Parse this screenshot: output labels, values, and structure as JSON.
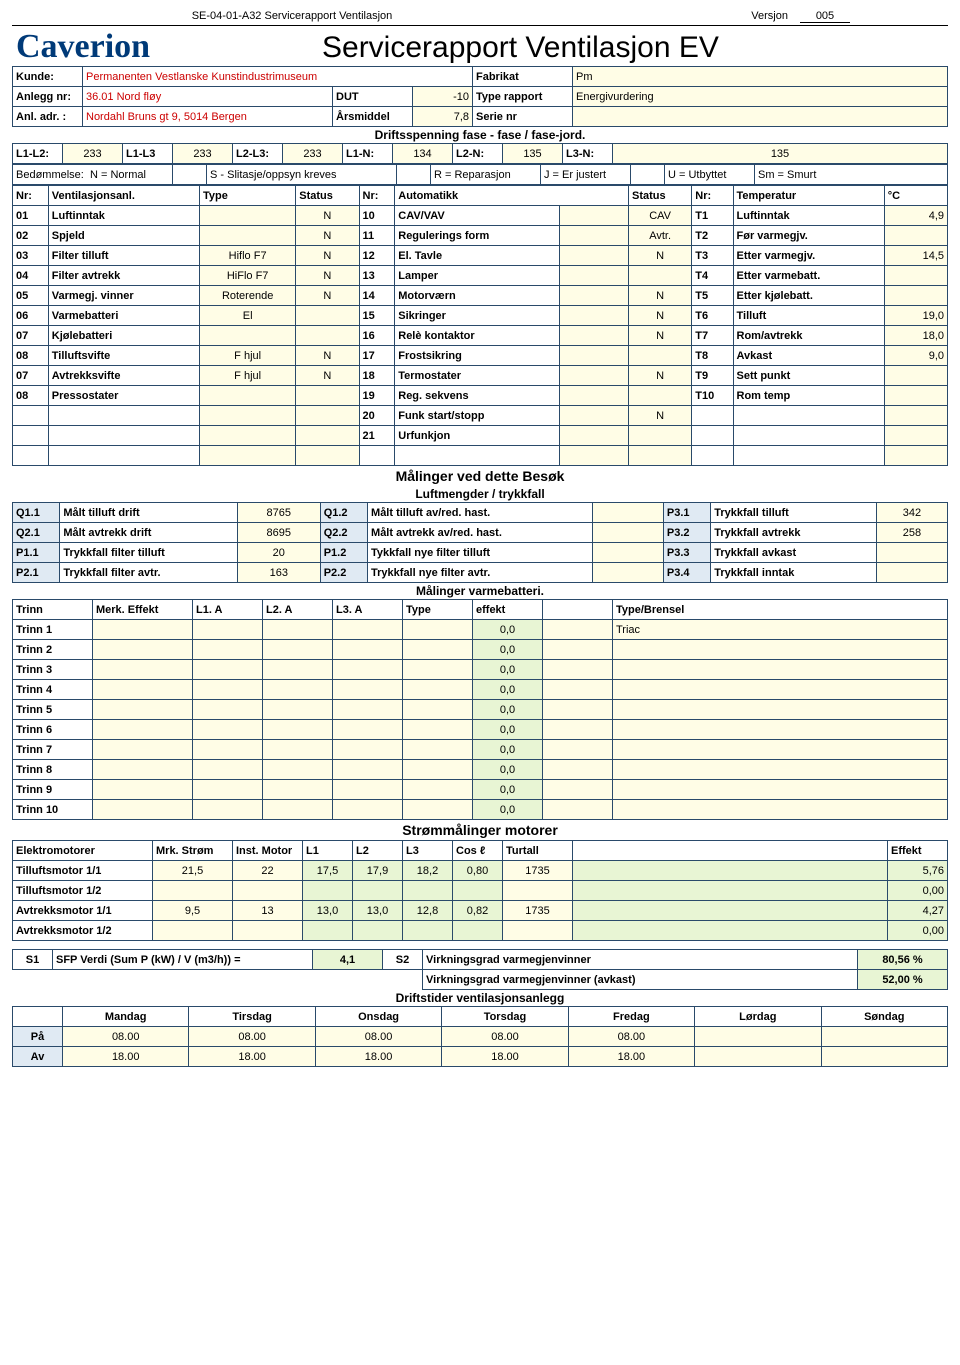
{
  "header": {
    "doc_id": "SE-04-01-A32 Servicerapport Ventilasjon",
    "version_label": "Versjon",
    "version_num": "005"
  },
  "brand": "Caverion",
  "title": "Servicerapport Ventilasjon EV",
  "info": {
    "kunde_label": "Kunde:",
    "kunde": "Permanenten Vestlanske Kunstindustrimuseum",
    "fabrikat_label": "Fabrikat",
    "fabrikat": "Pm",
    "anlegg_label": "Anlegg nr:",
    "anlegg": "36.01 Nord fløy",
    "dut_label": "DUT",
    "dut": "-10",
    "type_rapport_label": "Type rapport",
    "type_rapport": "Energivurdering",
    "adr_label": "Anl. adr. :",
    "adr": "Nordahl Bruns gt 9, 5014 Bergen",
    "arsmiddel_label": "Årsmiddel",
    "arsmiddel": "7,8",
    "serienr_label": "Serie nr",
    "serienr": ""
  },
  "volt_header": "Driftsspenning fase - fase / fase-jord.",
  "volt": {
    "l1l2_label": "L1-L2:",
    "l1l2": "233",
    "l1l3_label": "L1-L3",
    "l1l3": "233",
    "l2l3_label": "L2-L3:",
    "l2l3": "233",
    "l1n_label": "L1-N:",
    "l1n": "134",
    "l2n_label": "L2-N:",
    "l2n": "135",
    "l3n_label": "L3-N:",
    "l3n": "135"
  },
  "bed": {
    "label": "Bedømmelse:",
    "n": "N = Normal",
    "s": "S - Slitasje/oppsyn kreves",
    "r": "R = Reparasjon",
    "j": "J = Er justert",
    "u": "U = Utbyttet",
    "sm": "Sm = Smurt"
  },
  "table_heads": {
    "nr": "Nr:",
    "vent": "Ventilasjonsanl.",
    "type": "Type",
    "status": "Status",
    "auto": "Automatikk",
    "temp": "Temperatur",
    "degc": "°C"
  },
  "vent_left": [
    {
      "nr": "01",
      "name": "Luftinntak",
      "type": "",
      "status": "N"
    },
    {
      "nr": "02",
      "name": "Spjeld",
      "type": "",
      "status": "N"
    },
    {
      "nr": "03",
      "name": "Filter tilluft",
      "type": "Hiflo F7",
      "status": "N"
    },
    {
      "nr": "04",
      "name": "Filter avtrekk",
      "type": "HiFlo F7",
      "status": "N"
    },
    {
      "nr": "05",
      "name": "Varmegj. vinner",
      "type": "Roterende",
      "status": "N"
    },
    {
      "nr": "06",
      "name": "Varmebatteri",
      "type": "El",
      "status": ""
    },
    {
      "nr": "07",
      "name": "Kjølebatteri",
      "type": "",
      "status": ""
    },
    {
      "nr": "08",
      "name": "Tilluftsvifte",
      "type": "F hjul",
      "status": "N"
    },
    {
      "nr": "07",
      "name": "Avtrekksvifte",
      "type": "F hjul",
      "status": "N"
    },
    {
      "nr": "08",
      "name": "Pressostater",
      "type": "",
      "status": ""
    }
  ],
  "vent_mid": [
    {
      "nr": "10",
      "name": "CAV/VAV",
      "x": "",
      "status": "CAV"
    },
    {
      "nr": "11",
      "name": "Regulerings form",
      "x": "",
      "status": "Avtr."
    },
    {
      "nr": "12",
      "name": "El. Tavle",
      "x": "",
      "status": "N"
    },
    {
      "nr": "13",
      "name": "Lamper",
      "x": "",
      "status": ""
    },
    {
      "nr": "14",
      "name": "Motorværn",
      "x": "",
      "status": "N"
    },
    {
      "nr": "15",
      "name": "Sikringer",
      "x": "",
      "status": "N"
    },
    {
      "nr": "16",
      "name": "Relè kontaktor",
      "x": "",
      "status": "N"
    },
    {
      "nr": "17",
      "name": "Frostsikring",
      "x": "",
      "status": ""
    },
    {
      "nr": "18",
      "name": "Termostater",
      "x": "",
      "status": "N"
    },
    {
      "nr": "19",
      "name": "Reg. sekvens",
      "x": "",
      "status": ""
    },
    {
      "nr": "20",
      "name": "Funk start/stopp",
      "x": "",
      "status": "N"
    },
    {
      "nr": "21",
      "name": "Urfunkjon",
      "x": "",
      "status": ""
    }
  ],
  "vent_right": [
    {
      "nr": "T1",
      "name": "Luftinntak",
      "val": "4,9"
    },
    {
      "nr": "T2",
      "name": "Før varmegjv.",
      "val": ""
    },
    {
      "nr": "T3",
      "name": "Etter varmegjv.",
      "val": "14,5"
    },
    {
      "nr": "T4",
      "name": "Etter varmebatt.",
      "val": ""
    },
    {
      "nr": "T5",
      "name": "Etter kjølebatt.",
      "val": ""
    },
    {
      "nr": "T6",
      "name": "Tilluft",
      "val": "19,0"
    },
    {
      "nr": "T7",
      "name": "Rom/avtrekk",
      "val": "18,0"
    },
    {
      "nr": "T8",
      "name": "Avkast",
      "val": "9,0"
    },
    {
      "nr": "T9",
      "name": "Sett punkt",
      "val": ""
    },
    {
      "nr": "T10",
      "name": "Rom temp",
      "val": ""
    }
  ],
  "malinger_title": "Målinger ved dette Besøk",
  "luft_title": "Luftmengder / trykkfall",
  "luft": [
    [
      "Q1.1",
      "Målt tilluft drift",
      "8765",
      "Q1.2",
      "Målt tilluft av/red. hast.",
      "",
      "P3.1",
      "Trykkfall tilluft",
      "342"
    ],
    [
      "Q2.1",
      "Målt avtrekk drift",
      "8695",
      "Q2.2",
      "Målt avtrekk av/red. hast.",
      "",
      "P3.2",
      "Trykkfall avtrekk",
      "258"
    ],
    [
      "P1.1",
      "Trykkfall filter tilluft",
      "20",
      "P1.2",
      "Tykkfall nye filter tilluft",
      "",
      "P3.3",
      "Trykkfall avkast",
      ""
    ],
    [
      "P2.1",
      "Trykkfall filter avtr.",
      "163",
      "P2.2",
      "Trykkfall nye filter avtr.",
      "",
      "P3.4",
      "Trykkfall inntak",
      ""
    ]
  ],
  "varme_title": "Målinger varmebatteri.",
  "varme_head": [
    "Trinn",
    "Merk. Effekt",
    "L1. A",
    "L2. A",
    "L3. A",
    "Type",
    "effekt",
    "",
    "Type/Brensel"
  ],
  "varme_rows": [
    [
      "Trinn 1",
      "",
      "",
      "",
      "",
      "",
      "0,0",
      "",
      "Triac"
    ],
    [
      "Trinn 2",
      "",
      "",
      "",
      "",
      "",
      "0,0",
      "",
      ""
    ],
    [
      "Trinn 3",
      "",
      "",
      "",
      "",
      "",
      "0,0",
      "",
      ""
    ],
    [
      "Trinn 4",
      "",
      "",
      "",
      "",
      "",
      "0,0",
      "",
      ""
    ],
    [
      "Trinn 5",
      "",
      "",
      "",
      "",
      "",
      "0,0",
      "",
      ""
    ],
    [
      "Trinn 6",
      "",
      "",
      "",
      "",
      "",
      "0,0",
      "",
      ""
    ],
    [
      "Trinn 7",
      "",
      "",
      "",
      "",
      "",
      "0,0",
      "",
      ""
    ],
    [
      "Trinn 8",
      "",
      "",
      "",
      "",
      "",
      "0,0",
      "",
      ""
    ],
    [
      "Trinn 9",
      "",
      "",
      "",
      "",
      "",
      "0,0",
      "",
      ""
    ],
    [
      "Trinn 10",
      "",
      "",
      "",
      "",
      "",
      "0,0",
      "",
      ""
    ]
  ],
  "motor_title": "Strømmålinger motorer",
  "motor_head": [
    "Elektromotorer",
    "Mrk. Strøm",
    "Inst. Motor",
    "L1",
    "L2",
    "L3",
    "Cos ℓ",
    "Turtall",
    "",
    "Effekt"
  ],
  "motor_rows": [
    [
      "Tilluftsmotor 1/1",
      "21,5",
      "22",
      "17,5",
      "17,9",
      "18,2",
      "0,80",
      "1735",
      "",
      "5,76"
    ],
    [
      "Tilluftsmotor 1/2",
      "",
      "",
      "",
      "",
      "",
      "",
      "",
      "",
      "0,00"
    ],
    [
      "Avtrekksmotor 1/1",
      "9,5",
      "13",
      "13,0",
      "13,0",
      "12,8",
      "0,82",
      "1735",
      "",
      "4,27"
    ],
    [
      "Avtrekksmotor 1/2",
      "",
      "",
      "",
      "",
      "",
      "",
      "",
      "",
      "0,00"
    ]
  ],
  "sfp": {
    "s1": "S1",
    "s1_label": "SFP Verdi (Sum P (kW) / V (m3/h)) =",
    "s1_val": "4,1",
    "s2": "S2",
    "s2_label": "Virkningsgrad varmegjenvinner",
    "s2_val": "80,56 %",
    "s2b_label": "Virkningsgrad varmegjenvinner (avkast)",
    "s2b_val": "52,00 %"
  },
  "drift_title": "Driftstider ventilasjonsanlegg",
  "days": [
    "Mandag",
    "Tirsdag",
    "Onsdag",
    "Torsdag",
    "Fredag",
    "Lørdag",
    "Søndag"
  ],
  "drift": {
    "on_label": "På",
    "off_label": "Av",
    "on": [
      "08.00",
      "08.00",
      "08.00",
      "08.00",
      "08.00",
      "",
      ""
    ],
    "off": [
      "18.00",
      "18.00",
      "18.00",
      "18.00",
      "18.00",
      "",
      ""
    ]
  },
  "colors": {
    "yel": "#fffde6",
    "grn": "#e8f5d4",
    "blu": "#e0eaf3"
  }
}
